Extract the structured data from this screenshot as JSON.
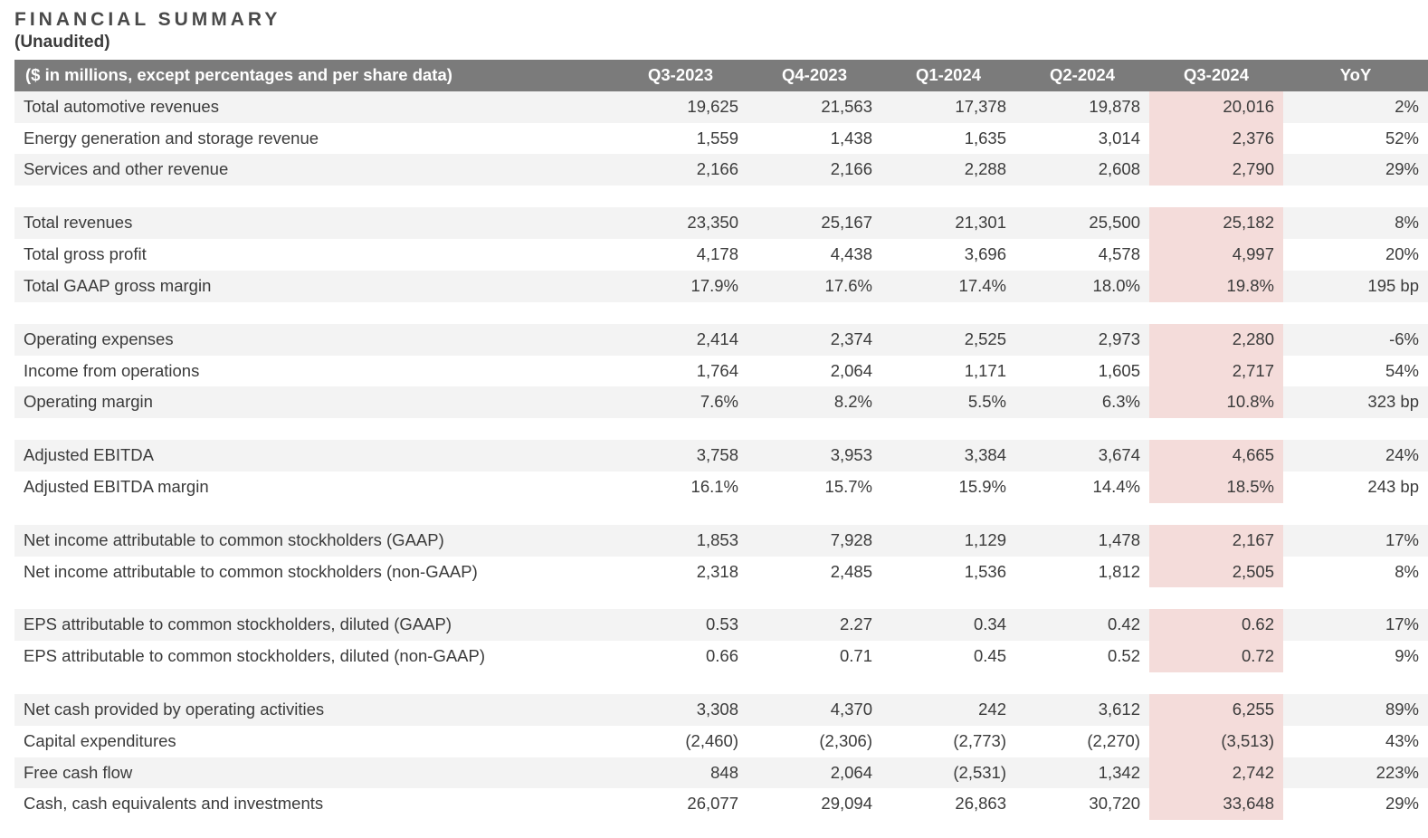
{
  "title": "FINANCIAL SUMMARY",
  "subtitle": "(Unaudited)",
  "table": {
    "headerLabel": "($ in millions, except percentages and per share data)",
    "periods": [
      "Q3-2023",
      "Q4-2023",
      "Q1-2024",
      "Q2-2024",
      "Q3-2024",
      "YoY"
    ],
    "highlightColumnIndex": 4,
    "colors": {
      "headerBg": "#7b7b7b",
      "headerText": "#ffffff",
      "stripeBg": "#f3f3f3",
      "highlightBg": "#f4dcda",
      "textColor": "#3b3b3b",
      "pageBg": "#ffffff"
    },
    "rows": [
      {
        "type": "data",
        "stripe": true,
        "label": "Total automotive revenues",
        "vals": [
          "19,625",
          "21,563",
          "17,378",
          "19,878",
          "20,016",
          "2%"
        ]
      },
      {
        "type": "data",
        "stripe": false,
        "label": "Energy generation and storage revenue",
        "vals": [
          "1,559",
          "1,438",
          "1,635",
          "3,014",
          "2,376",
          "52%"
        ]
      },
      {
        "type": "data",
        "stripe": true,
        "label": "Services and other revenue",
        "vals": [
          "2,166",
          "2,166",
          "2,288",
          "2,608",
          "2,790",
          "29%"
        ]
      },
      {
        "type": "spacer"
      },
      {
        "type": "data",
        "stripe": true,
        "label": "Total revenues",
        "vals": [
          "23,350",
          "25,167",
          "21,301",
          "25,500",
          "25,182",
          "8%"
        ]
      },
      {
        "type": "data",
        "stripe": false,
        "label": "Total gross profit",
        "vals": [
          "4,178",
          "4,438",
          "3,696",
          "4,578",
          "4,997",
          "20%"
        ]
      },
      {
        "type": "data",
        "stripe": true,
        "label": "Total GAAP gross margin",
        "vals": [
          "17.9%",
          "17.6%",
          "17.4%",
          "18.0%",
          "19.8%",
          "195 bp"
        ]
      },
      {
        "type": "spacer"
      },
      {
        "type": "data",
        "stripe": true,
        "label": "Operating expenses",
        "vals": [
          "2,414",
          "2,374",
          "2,525",
          "2,973",
          "2,280",
          "-6%"
        ]
      },
      {
        "type": "data",
        "stripe": false,
        "label": "Income from operations",
        "vals": [
          "1,764",
          "2,064",
          "1,171",
          "1,605",
          "2,717",
          "54%"
        ]
      },
      {
        "type": "data",
        "stripe": true,
        "label": "Operating margin",
        "vals": [
          "7.6%",
          "8.2%",
          "5.5%",
          "6.3%",
          "10.8%",
          "323 bp"
        ]
      },
      {
        "type": "spacer"
      },
      {
        "type": "data",
        "stripe": true,
        "label": "Adjusted EBITDA",
        "vals": [
          "3,758",
          "3,953",
          "3,384",
          "3,674",
          "4,665",
          "24%"
        ]
      },
      {
        "type": "data",
        "stripe": false,
        "label": "Adjusted EBITDA margin",
        "vals": [
          "16.1%",
          "15.7%",
          "15.9%",
          "14.4%",
          "18.5%",
          "243 bp"
        ]
      },
      {
        "type": "spacer"
      },
      {
        "type": "data",
        "stripe": true,
        "label": "Net income attributable to common stockholders (GAAP)",
        "vals": [
          "1,853",
          "7,928",
          "1,129",
          "1,478",
          "2,167",
          "17%"
        ]
      },
      {
        "type": "data",
        "stripe": false,
        "label": "Net income attributable to common stockholders (non-GAAP)",
        "vals": [
          "2,318",
          "2,485",
          "1,536",
          "1,812",
          "2,505",
          "8%"
        ]
      },
      {
        "type": "spacer"
      },
      {
        "type": "data",
        "stripe": true,
        "label": "EPS attributable to common stockholders, diluted (GAAP)",
        "vals": [
          "0.53",
          "2.27",
          "0.34",
          "0.42",
          "0.62",
          "17%"
        ]
      },
      {
        "type": "data",
        "stripe": false,
        "label": "EPS attributable to common stockholders, diluted (non-GAAP)",
        "vals": [
          "0.66",
          "0.71",
          "0.45",
          "0.52",
          "0.72",
          "9%"
        ]
      },
      {
        "type": "spacer"
      },
      {
        "type": "data",
        "stripe": true,
        "label": "Net cash provided by operating activities",
        "vals": [
          "3,308",
          "4,370",
          "242",
          "3,612",
          "6,255",
          "89%"
        ]
      },
      {
        "type": "data",
        "stripe": false,
        "label": "Capital expenditures",
        "vals": [
          "(2,460)",
          "(2,306)",
          "(2,773)",
          "(2,270)",
          "(3,513)",
          "43%"
        ]
      },
      {
        "type": "data",
        "stripe": true,
        "label": "Free cash flow",
        "vals": [
          "848",
          "2,064",
          "(2,531)",
          "1,342",
          "2,742",
          "223%"
        ]
      },
      {
        "type": "data",
        "stripe": false,
        "label": "Cash, cash equivalents and investments",
        "vals": [
          "26,077",
          "29,094",
          "26,863",
          "30,720",
          "33,648",
          "29%"
        ]
      }
    ]
  }
}
